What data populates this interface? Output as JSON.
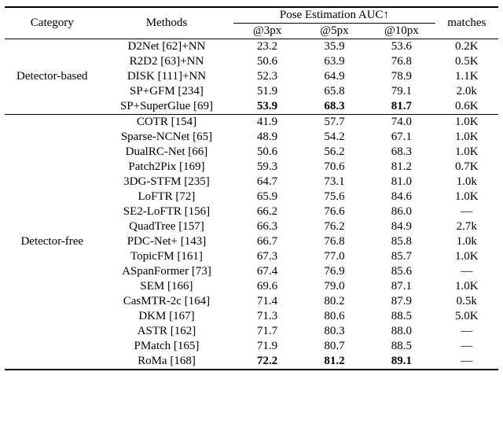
{
  "header": {
    "category": "Category",
    "methods": "Methods",
    "pose": "Pose Estimation AUC↑",
    "c3": "@3px",
    "c5": "@5px",
    "c10": "@10px",
    "matches": "matches"
  },
  "groups": [
    {
      "label": "Detector-based",
      "rows": [
        {
          "method": "D2Net [62]+NN",
          "c3": "23.2",
          "c5": "35.9",
          "c10": "53.6",
          "m": "0.2K",
          "bold": false
        },
        {
          "method": "R2D2 [63]+NN",
          "c3": "50.6",
          "c5": "63.9",
          "c10": "76.8",
          "m": "0.5K",
          "bold": false
        },
        {
          "method": "DISK [111]+NN",
          "c3": "52.3",
          "c5": "64.9",
          "c10": "78.9",
          "m": "1.1K",
          "bold": false
        },
        {
          "method": "SP+GFM [234]",
          "c3": "51.9",
          "c5": "65.8",
          "c10": "79.1",
          "m": "2.0k",
          "bold": false
        },
        {
          "method": "SP+SuperGlue [69]",
          "c3": "53.9",
          "c5": "68.3",
          "c10": "81.7",
          "m": "0.6K",
          "bold": true
        }
      ]
    },
    {
      "label": "Detector-free",
      "rows": [
        {
          "method": "COTR [154]",
          "c3": "41.9",
          "c5": "57.7",
          "c10": "74.0",
          "m": "1.0K",
          "bold": false
        },
        {
          "method": "Sparse-NCNet [65]",
          "c3": "48.9",
          "c5": "54.2",
          "c10": "67.1",
          "m": "1.0K",
          "bold": false
        },
        {
          "method": "DualRC-Net [66]",
          "c3": "50.6",
          "c5": "56.2",
          "c10": "68.3",
          "m": "1.0K",
          "bold": false
        },
        {
          "method": "Patch2Pix [169]",
          "c3": "59.3",
          "c5": "70.6",
          "c10": "81.2",
          "m": "0.7K",
          "bold": false
        },
        {
          "method": "3DG-STFM [235]",
          "c3": "64.7",
          "c5": "73.1",
          "c10": "81.0",
          "m": "1.0k",
          "bold": false
        },
        {
          "method": "LoFTR [72]",
          "c3": "65.9",
          "c5": "75.6",
          "c10": "84.6",
          "m": "1.0K",
          "bold": false
        },
        {
          "method": "SE2-LoFTR [156]",
          "c3": "66.2",
          "c5": "76.6",
          "c10": "86.0",
          "m": "—",
          "bold": false
        },
        {
          "method": "QuadTree [157]",
          "c3": "66.3",
          "c5": "76.2",
          "c10": "84.9",
          "m": "2.7k",
          "bold": false
        },
        {
          "method": "PDC-Net+ [143]",
          "c3": "66.7",
          "c5": "76.8",
          "c10": "85.8",
          "m": "1.0k",
          "bold": false
        },
        {
          "method": "TopicFM [161]",
          "c3": "67.3",
          "c5": "77.0",
          "c10": "85.7",
          "m": "1.0K",
          "bold": false
        },
        {
          "method": "ASpanFormer [73]",
          "c3": "67.4",
          "c5": "76.9",
          "c10": "85.6",
          "m": "—",
          "bold": false
        },
        {
          "method": "SEM [166]",
          "c3": "69.6",
          "c5": "79.0",
          "c10": "87.1",
          "m": "1.0K",
          "bold": false
        },
        {
          "method": "CasMTR-2c [164]",
          "c3": "71.4",
          "c5": "80.2",
          "c10": "87.9",
          "m": "0.5k",
          "bold": false
        },
        {
          "method": "DKM [167]",
          "c3": "71.3",
          "c5": "80.6",
          "c10": "88.5",
          "m": "5.0K",
          "bold": false
        },
        {
          "method": "ASTR [162]",
          "c3": "71.7",
          "c5": "80.3",
          "c10": "88.0",
          "m": "—",
          "bold": false
        },
        {
          "method": "PMatch [165]",
          "c3": "71.9",
          "c5": "80.7",
          "c10": "88.5",
          "m": "—",
          "bold": false
        },
        {
          "method": "RoMa [168]",
          "c3": "72.2",
          "c5": "81.2",
          "c10": "89.1",
          "m": "—",
          "bold": true
        }
      ]
    }
  ]
}
